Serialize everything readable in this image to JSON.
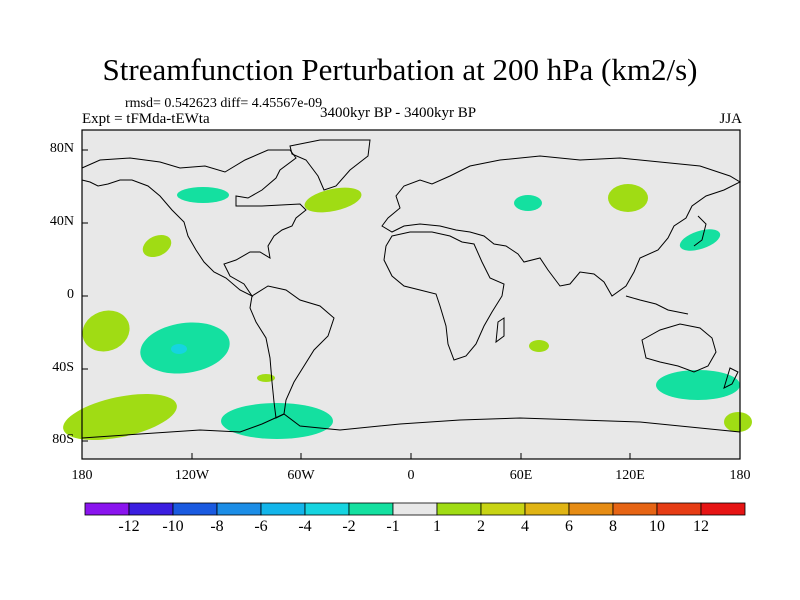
{
  "header": {
    "title": "Streamfunction Perturbation at 200 hPa (km2/s)",
    "stats": "rmsd= 0.542623 diff= 4.45567e-09",
    "experiment": "Expt = tFMda-tEWta",
    "period": "3400kyr BP - 3400kyr BP",
    "season": "JJA"
  },
  "axes": {
    "y_labels": [
      "80N",
      "40N",
      "0",
      "40S",
      "80S"
    ],
    "x_labels": [
      "180",
      "120W",
      "60W",
      "0",
      "60E",
      "120E",
      "180"
    ]
  },
  "colorbar": {
    "labels": [
      "-12",
      "-10",
      "-8",
      "-6",
      "-4",
      "-2",
      "-1",
      "1",
      "2",
      "4",
      "6",
      "8",
      "10",
      "12"
    ],
    "colors": [
      "#8a14ee",
      "#3b1ee0",
      "#1a5ae0",
      "#1c8de6",
      "#13b5ea",
      "#16d4e0",
      "#14e0a0",
      "#e8e8e8",
      "#a0dc14",
      "#c8d414",
      "#e0b414",
      "#e68c14",
      "#e66414",
      "#e63c14",
      "#e61414"
    ]
  },
  "colors": {
    "land_ocean": "#e8e8e8",
    "negative_small": "#14e0a0",
    "negative_mid": "#16d4e0",
    "positive_small": "#a0dc14"
  }
}
